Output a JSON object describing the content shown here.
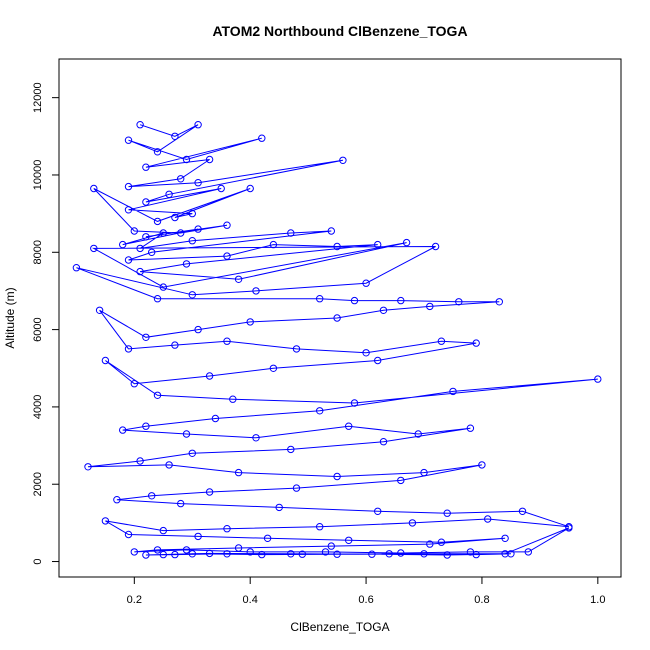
{
  "chart_data": {
    "type": "line",
    "title": "ATOM2 Northbound ClBenzene_TOGA",
    "xlabel": "ClBenzene_TOGA",
    "ylabel": "Altitude (m)",
    "xlim": [
      0.07,
      1.04
    ],
    "ylim": [
      -400,
      13000
    ],
    "xticks": [
      "0.2",
      "0.4",
      "0.6",
      "0.8",
      "1.0"
    ],
    "xtick_values": [
      0.2,
      0.4,
      0.6,
      0.8,
      1.0
    ],
    "yticks": [
      "0",
      "2000",
      "4000",
      "6000",
      "8000",
      "10000",
      "12000"
    ],
    "ytick_values": [
      0,
      2000,
      4000,
      6000,
      8000,
      10000,
      12000
    ],
    "grid": false,
    "marker": "open-circle",
    "color": "#0000ff",
    "series": [
      {
        "x": [
          0.21,
          0.27,
          0.31,
          0.24,
          0.19,
          0.29,
          0.42,
          0.22,
          0.33,
          0.28,
          0.19,
          0.31,
          0.56,
          0.26,
          0.22,
          0.35,
          0.19,
          0.3,
          0.27,
          0.4,
          0.24,
          0.13,
          0.2,
          0.28,
          0.36,
          0.22,
          0.31,
          0.18,
          0.25,
          0.21,
          0.3,
          0.47,
          0.54,
          0.23,
          0.19,
          0.36,
          0.44,
          0.55,
          0.62,
          0.29,
          0.21,
          0.38,
          0.67,
          0.25,
          0.13,
          0.72,
          0.6,
          0.41,
          0.3,
          0.1,
          0.24,
          0.52,
          0.58,
          0.66,
          0.76,
          0.83,
          0.71,
          0.63,
          0.55,
          0.4,
          0.31,
          0.22,
          0.14,
          0.19,
          0.27,
          0.36,
          0.48,
          0.6,
          0.73,
          0.79,
          0.62,
          0.44,
          0.33,
          0.2,
          0.15,
          0.24,
          0.37,
          0.58,
          1.0,
          0.75,
          0.52,
          0.34,
          0.22,
          0.18,
          0.29,
          0.41,
          0.57,
          0.69,
          0.78,
          0.63,
          0.47,
          0.3,
          0.21,
          0.12,
          0.26,
          0.38,
          0.55,
          0.7,
          0.8,
          0.66,
          0.48,
          0.33,
          0.23,
          0.17,
          0.28,
          0.45,
          0.62,
          0.74,
          0.87,
          0.95,
          0.81,
          0.68,
          0.52,
          0.36,
          0.25,
          0.15,
          0.19,
          0.31,
          0.43,
          0.57,
          0.73,
          0.84,
          0.71,
          0.54,
          0.38,
          0.24,
          0.2,
          0.29,
          0.4,
          0.53,
          0.66,
          0.78,
          0.88,
          0.95,
          0.84,
          0.7,
          0.55,
          0.42,
          0.3,
          0.22,
          0.27,
          0.36,
          0.49,
          0.64,
          0.79,
          0.85,
          0.74,
          0.61,
          0.47,
          0.33,
          0.25
        ],
        "y": [
          11300,
          11000,
          11300,
          10600,
          10900,
          10400,
          10950,
          10200,
          10400,
          9900,
          9700,
          9800,
          10380,
          9500,
          9300,
          9650,
          9100,
          9000,
          8900,
          9650,
          8800,
          9650,
          8550,
          8500,
          8700,
          8400,
          8600,
          8200,
          8500,
          8100,
          8300,
          8500,
          8550,
          8000,
          7800,
          7900,
          8200,
          8150,
          8200,
          7700,
          7500,
          7300,
          8250,
          7100,
          8100,
          8150,
          7200,
          7000,
          6900,
          7600,
          6800,
          6800,
          6750,
          6750,
          6720,
          6720,
          6600,
          6500,
          6300,
          6200,
          6000,
          5800,
          6500,
          5500,
          5600,
          5700,
          5500,
          5400,
          5700,
          5650,
          5200,
          5000,
          4800,
          4600,
          5200,
          4300,
          4200,
          4100,
          4720,
          4400,
          3900,
          3700,
          3500,
          3400,
          3300,
          3200,
          3500,
          3300,
          3450,
          3100,
          2900,
          2800,
          2600,
          2450,
          2500,
          2300,
          2200,
          2300,
          2500,
          2100,
          1900,
          1800,
          1700,
          1600,
          1500,
          1400,
          1300,
          1250,
          1300,
          900,
          1100,
          1000,
          900,
          850,
          800,
          1050,
          700,
          650,
          600,
          550,
          500,
          600,
          450,
          400,
          350,
          300,
          250,
          300,
          250,
          250,
          220,
          250,
          250,
          870,
          200,
          200,
          190,
          180,
          200,
          170,
          180,
          200,
          190,
          200,
          180,
          200,
          170,
          190,
          200,
          210,
          180
        ]
      }
    ]
  }
}
